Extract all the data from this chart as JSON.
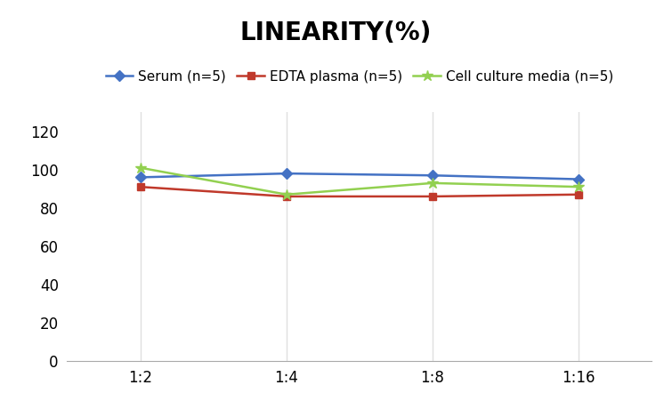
{
  "title": "LINEARITY(%)",
  "title_fontsize": 20,
  "title_fontweight": "bold",
  "x_labels": [
    "1:2",
    "1:4",
    "1:8",
    "1:16"
  ],
  "x_positions": [
    0,
    1,
    2,
    3
  ],
  "series": [
    {
      "label": "Serum (n=5)",
      "values": [
        96,
        98,
        97,
        95
      ],
      "color": "#4472C4",
      "marker": "D",
      "marker_size": 6,
      "linewidth": 1.8
    },
    {
      "label": "EDTA plasma (n=5)",
      "values": [
        91,
        86,
        86,
        87
      ],
      "color": "#C0392B",
      "marker": "s",
      "marker_size": 6,
      "linewidth": 1.8
    },
    {
      "label": "Cell culture media (n=5)",
      "values": [
        101,
        87,
        93,
        91
      ],
      "color": "#92D050",
      "marker": "*",
      "marker_size": 9,
      "linewidth": 1.8
    }
  ],
  "ylim": [
    0,
    130
  ],
  "yticks": [
    0,
    20,
    40,
    60,
    80,
    100,
    120
  ],
  "grid_color": "#E0E0E0",
  "background_color": "#FFFFFF",
  "legend_fontsize": 11,
  "axis_fontsize": 12
}
